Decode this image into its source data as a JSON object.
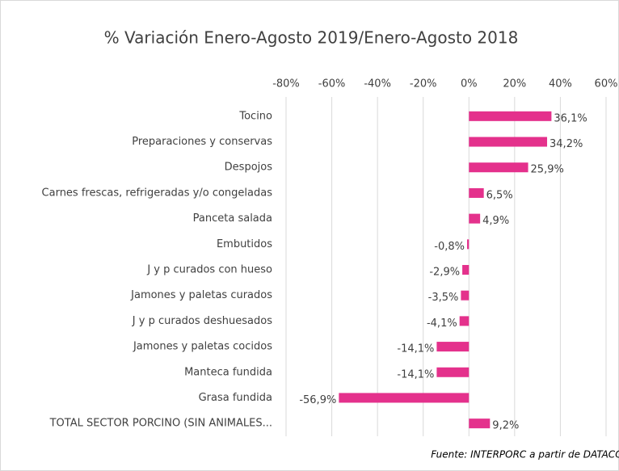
{
  "chart_data": {
    "type": "bar",
    "orientation": "horizontal",
    "title": "% Variación Enero-Agosto 2019/Enero-Agosto 2018",
    "categories": [
      "Tocino",
      "Preparaciones y conservas",
      "Despojos",
      "Carnes frescas, refrigeradas y/o congeladas",
      "Panceta salada",
      "Embutidos",
      "J y p curados con hueso",
      "Jamones y paletas curados",
      "J y p curados deshuesados",
      "Jamones y paletas cocidos",
      "Manteca fundida",
      "Grasa fundida",
      "TOTAL SECTOR PORCINO (SIN ANIMALES..."
    ],
    "values": [
      36.1,
      34.2,
      25.9,
      6.5,
      4.9,
      -0.8,
      -2.9,
      -3.5,
      -4.1,
      -14.1,
      -14.1,
      -56.9,
      9.2
    ],
    "value_labels": [
      "36,1%",
      "34,2%",
      "25,9%",
      "6,5%",
      "4,9%",
      "-0,8%",
      "-2,9%",
      "-3,5%",
      "-4,1%",
      "-14,1%",
      "-14,1%",
      "-56,9%",
      "9,2%"
    ],
    "color": "#e4318c",
    "xlim": [
      -80,
      60
    ],
    "xticks": [
      {
        "value": -80,
        "label": "-80%"
      },
      {
        "value": -60,
        "label": "-60%"
      },
      {
        "value": -40,
        "label": "-40%"
      },
      {
        "value": -20,
        "label": "-20%"
      },
      {
        "value": 0,
        "label": "0%"
      },
      {
        "value": 20,
        "label": "20%"
      },
      {
        "value": 40,
        "label": "40%"
      },
      {
        "value": 60,
        "label": "60%"
      }
    ],
    "grid": true,
    "source": "Fuente: INTERPORC  a partir de DATACOMEX"
  }
}
